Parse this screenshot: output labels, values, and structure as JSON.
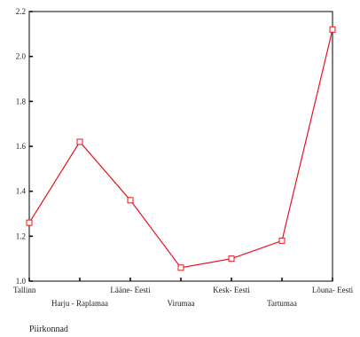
{
  "chart_data": {
    "type": "line",
    "xlabel": "Piirkonnad",
    "ylabel": "",
    "ylim": [
      1.0,
      2.2
    ],
    "yticks": [
      "1.0",
      "1.2",
      "1.4",
      "1.6",
      "1.8",
      "2.0",
      "2.2"
    ],
    "categories": [
      "Tallinn",
      "Harju - Raplamaa",
      "Lääne- Eesti",
      "Virumaa",
      "Kesk- Eesti",
      "Tartumaa",
      "Lõuna- Eesti"
    ],
    "series": [
      {
        "values": [
          1.26,
          1.62,
          1.36,
          1.06,
          1.1,
          1.18,
          2.12
        ],
        "color": "#e8141c",
        "marker": "square"
      }
    ],
    "grid": false
  }
}
